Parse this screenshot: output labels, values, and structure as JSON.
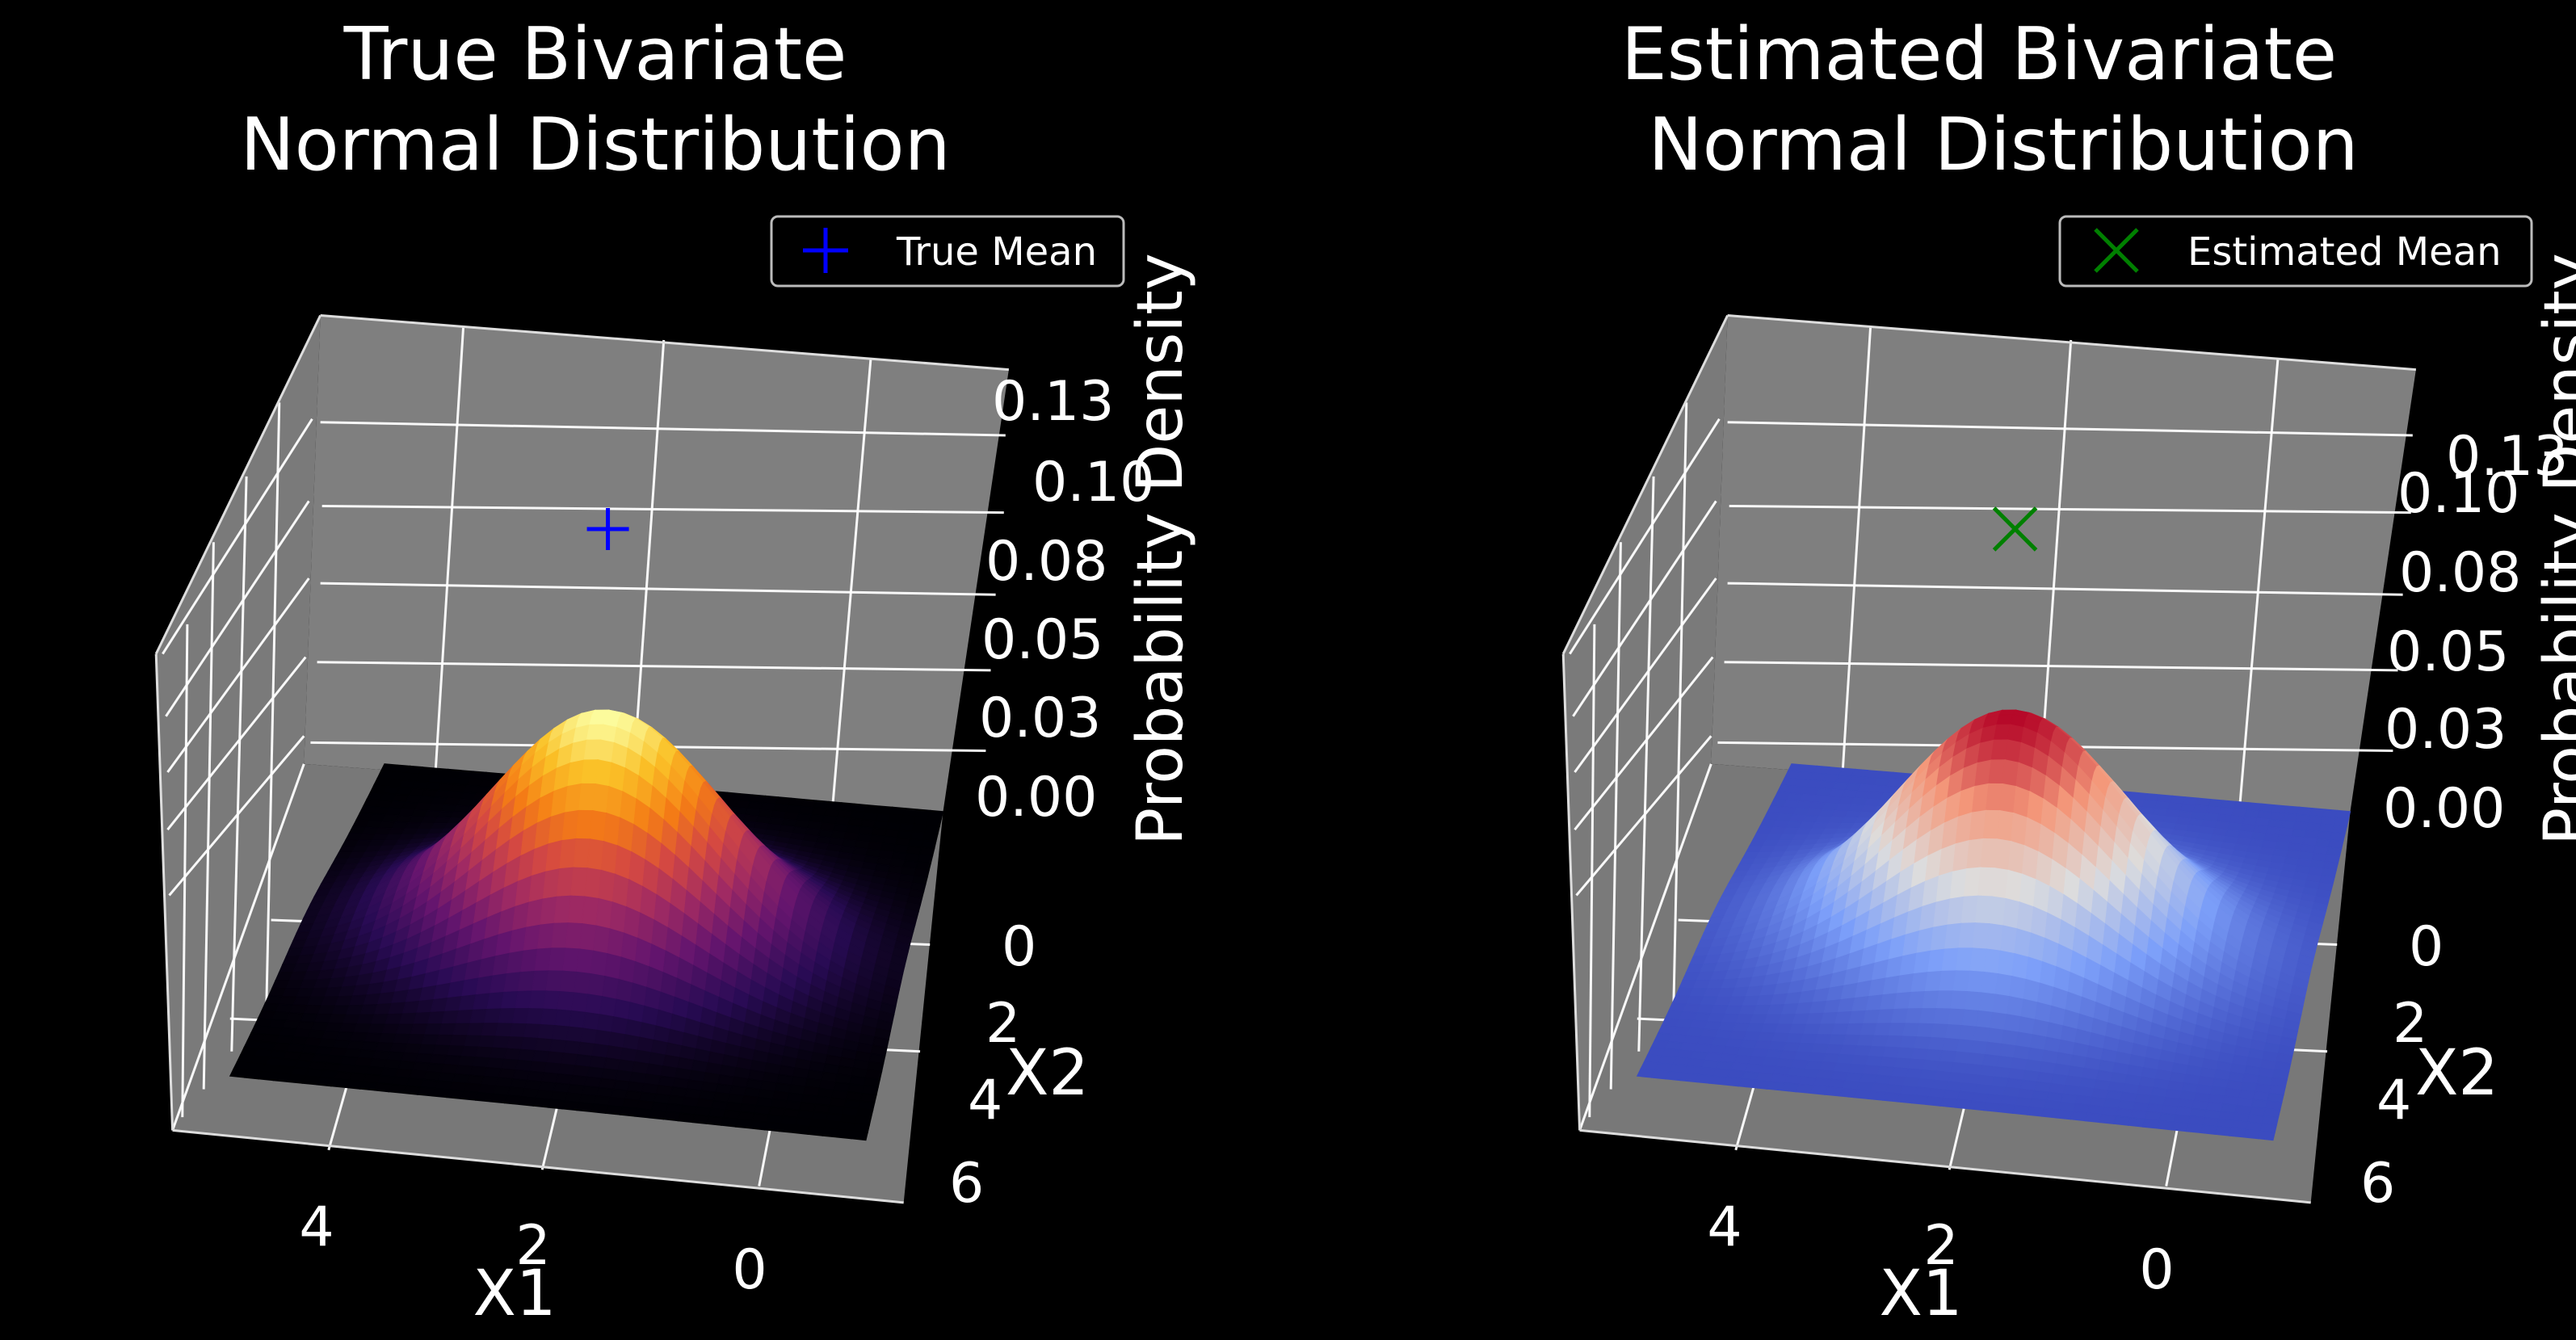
{
  "chart_data": [
    {
      "type": "surface3d",
      "title_lines": [
        "True Bivariate",
        "Normal Distribution"
      ],
      "xlabel": "X1",
      "ylabel": "X2",
      "zlabel": "Probability Density",
      "x_ticks": [
        "4",
        "2",
        "0"
      ],
      "y_ticks": [
        "0",
        "2",
        "4",
        "6"
      ],
      "z_ticks": [
        "0.13",
        "0.10",
        "0.08",
        "0.05",
        "0.03",
        "0.00"
      ],
      "x_range": [
        -1,
        5
      ],
      "y_range": [
        -1,
        7
      ],
      "zlim": [
        0,
        0.15
      ],
      "mean": [
        2,
        3
      ],
      "cov": [
        [
          1.4,
          0
        ],
        [
          0,
          1.4
        ]
      ],
      "colormap": "inferno",
      "legend": {
        "label": "True Mean",
        "marker": "plus",
        "color": "#0000ff",
        "position": "top-right"
      }
    },
    {
      "type": "surface3d",
      "title_lines": [
        "Estimated Bivariate",
        "Normal Distribution"
      ],
      "xlabel": "X1",
      "ylabel": "X2",
      "zlabel": "Probability Density",
      "x_ticks": [
        "4",
        "2",
        "0"
      ],
      "y_ticks": [
        "0",
        "2",
        "4",
        "6"
      ],
      "z_ticks": [
        "0.13",
        "0.10",
        "0.08",
        "0.05",
        "0.03",
        "0.00"
      ],
      "x_range": [
        -1,
        5
      ],
      "y_range": [
        -1,
        7
      ],
      "zlim": [
        0,
        0.15
      ],
      "mean": [
        2,
        3
      ],
      "cov": [
        [
          1.4,
          0
        ],
        [
          0,
          1.4
        ]
      ],
      "colormap": "coolwarm",
      "legend": {
        "label": "Estimated Mean",
        "marker": "x",
        "color": "#008000",
        "position": "top-right"
      }
    }
  ]
}
